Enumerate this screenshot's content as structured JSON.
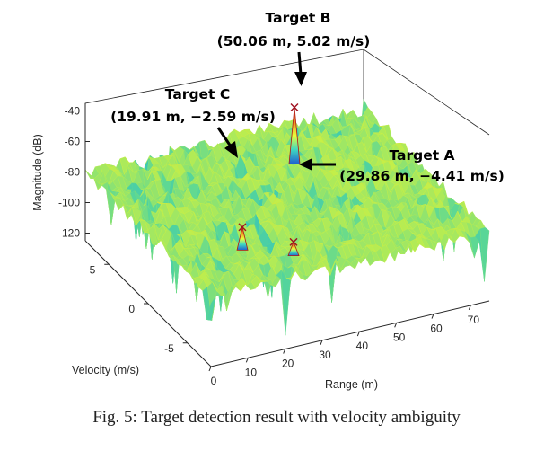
{
  "chart_data": {
    "type": "surface",
    "title": "",
    "xlabel": "Range (m)",
    "ylabel": "Velocity (m/s)",
    "zlabel": "Magnitude (dB)",
    "x_ticks": [
      "0",
      "10",
      "20",
      "30",
      "40",
      "50",
      "60",
      "70"
    ],
    "y_ticks": [
      "-5",
      "0",
      "5"
    ],
    "z_ticks": [
      "-40",
      "-60",
      "-80",
      "-100",
      "-120"
    ],
    "xlim": [
      0,
      75
    ],
    "ylim": [
      -8,
      8
    ],
    "zlim": [
      -125,
      -35
    ],
    "noise_floor_db": -80,
    "grid": false,
    "peaks": [
      {
        "name": "Target A",
        "range": 29.86,
        "velocity": -4.41,
        "magnitude_db": -79
      },
      {
        "name": "Target B",
        "range": 50.06,
        "velocity": 5.02,
        "magnitude_db": -51
      },
      {
        "name": "Target C",
        "range": 19.91,
        "velocity": -2.59,
        "magnitude_db": -73
      }
    ]
  },
  "annotations": [
    {
      "id": "a",
      "name": "Target A",
      "line1": "Target A",
      "line2": "(29.86 m, −4.41 m/s)"
    },
    {
      "id": "b",
      "name": "Target B",
      "line1": "Target B",
      "line2": "(50.06 m,  5.02 m/s)"
    },
    {
      "id": "c",
      "name": "Target C",
      "line1": "Target C",
      "line2": "(19.91 m, −2.59 m/s)"
    }
  ],
  "colors": {
    "low": "#1f6fd6",
    "mid": "#e8ff3a",
    "high": "#c81d1d",
    "floor": "#5fd39a"
  },
  "caption": "Fig. 5: Target detection result with velocity ambiguity"
}
